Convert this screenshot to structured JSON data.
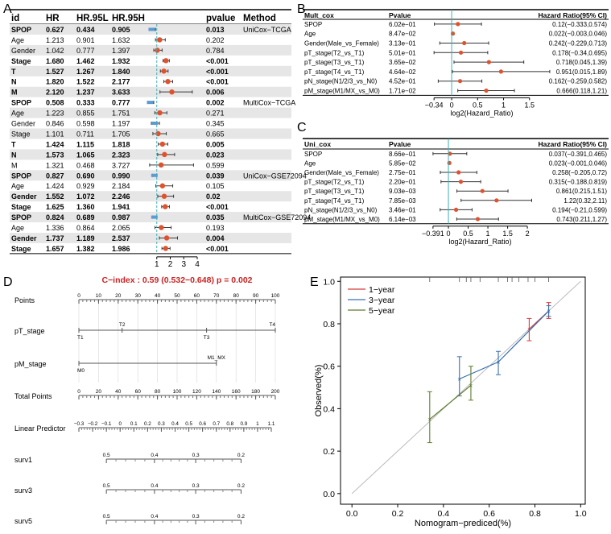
{
  "chart_data": [
    {
      "panel": "A",
      "type": "forest",
      "columns": [
        "id",
        "HR",
        "HR.95L",
        "HR.95H",
        "pvalue",
        "Method"
      ],
      "x_ticks": [
        1,
        2,
        3,
        4
      ],
      "xlim": [
        0,
        4.6
      ],
      "reference_line": 1,
      "rows": [
        {
          "id": "SPOP",
          "hr": "0.627",
          "lo": "0.434",
          "hi": "0.905",
          "p": "0.013",
          "method": "UniCox−TCGA",
          "bold": true,
          "shade": true
        },
        {
          "id": "Age",
          "hr": "1.213",
          "lo": "0.901",
          "hi": "1.632",
          "p": "0.202",
          "method": "",
          "bold": false,
          "shade": false
        },
        {
          "id": "Gender",
          "hr": "1.042",
          "lo": "0.777",
          "hi": "1.397",
          "p": "0.784",
          "method": "",
          "bold": false,
          "shade": true
        },
        {
          "id": "Stage",
          "hr": "1.680",
          "lo": "1.462",
          "hi": "1.932",
          "p": "<0.001",
          "method": "",
          "bold": true,
          "shade": false
        },
        {
          "id": "T",
          "hr": "1.527",
          "lo": "1.267",
          "hi": "1.840",
          "p": "<0.001",
          "method": "",
          "bold": true,
          "shade": true
        },
        {
          "id": "N",
          "hr": "1.820",
          "lo": "1.522",
          "hi": "2.177",
          "p": "<0.001",
          "method": "",
          "bold": true,
          "shade": false
        },
        {
          "id": "M",
          "hr": "2.120",
          "lo": "1.237",
          "hi": "3.633",
          "p": "0.006",
          "method": "",
          "bold": true,
          "shade": true
        },
        {
          "id": "SPOP",
          "hr": "0.508",
          "lo": "0.333",
          "hi": "0.777",
          "p": "0.002",
          "method": "MultiCox−TCGA",
          "bold": true,
          "shade": false
        },
        {
          "id": "Age",
          "hr": "1.223",
          "lo": "0.855",
          "hi": "1.751",
          "p": "0.271",
          "method": "",
          "bold": false,
          "shade": true
        },
        {
          "id": "Gender",
          "hr": "0.846",
          "lo": "0.598",
          "hi": "1.197",
          "p": "0.345",
          "method": "",
          "bold": false,
          "shade": false
        },
        {
          "id": "Stage",
          "hr": "1.101",
          "lo": "0.711",
          "hi": "1.705",
          "p": "0.665",
          "method": "",
          "bold": false,
          "shade": true
        },
        {
          "id": "T",
          "hr": "1.424",
          "lo": "1.115",
          "hi": "1.818",
          "p": "0.005",
          "method": "",
          "bold": true,
          "shade": false
        },
        {
          "id": "N",
          "hr": "1.573",
          "lo": "1.065",
          "hi": "2.323",
          "p": "0.023",
          "method": "",
          "bold": true,
          "shade": true
        },
        {
          "id": "M",
          "hr": "1.321",
          "lo": "0.468",
          "hi": "3.727",
          "p": "0.599",
          "method": "",
          "bold": false,
          "shade": false
        },
        {
          "id": "SPOP",
          "hr": "0.827",
          "lo": "0.690",
          "hi": "0.990",
          "p": "0.039",
          "method": "UniCox−GSE72094",
          "bold": true,
          "shade": true
        },
        {
          "id": "Age",
          "hr": "1.424",
          "lo": "0.929",
          "hi": "2.184",
          "p": "0.105",
          "method": "",
          "bold": false,
          "shade": false
        },
        {
          "id": "Gender",
          "hr": "1.552",
          "lo": "1.072",
          "hi": "2.246",
          "p": "0.02",
          "method": "",
          "bold": true,
          "shade": true
        },
        {
          "id": "Stage",
          "hr": "1.625",
          "lo": "1.360",
          "hi": "1.941",
          "p": "<0.001",
          "method": "",
          "bold": true,
          "shade": false
        },
        {
          "id": "SPOP",
          "hr": "0.824",
          "lo": "0.689",
          "hi": "0.987",
          "p": "0.035",
          "method": "MultiCox−GSE72094",
          "bold": true,
          "shade": true
        },
        {
          "id": "Age",
          "hr": "1.336",
          "lo": "0.864",
          "hi": "2.065",
          "p": "0.193",
          "method": "",
          "bold": false,
          "shade": false
        },
        {
          "id": "Gender",
          "hr": "1.737",
          "lo": "1.189",
          "hi": "2.537",
          "p": "0.004",
          "method": "",
          "bold": true,
          "shade": true
        },
        {
          "id": "Stage",
          "hr": "1.657",
          "lo": "1.382",
          "hi": "1.986",
          "p": "<0.001",
          "method": "",
          "bold": true,
          "shade": false
        }
      ]
    },
    {
      "panel": "B",
      "type": "forest",
      "title": "Mult_cox",
      "pcol": "Pvalue",
      "hrcol": "Hazard Ratio(95% CI)",
      "xlabel": "log2(Hazard_Ratio)",
      "x_ticks": [
        "−0.34",
        "0",
        "0.5",
        "1",
        "1.5"
      ],
      "x_tick_values": [
        -0.34,
        0,
        0.5,
        1,
        1.5
      ],
      "xlim": [
        -0.42,
        1.55
      ],
      "reference_line": 0,
      "rows": [
        {
          "label": "SPOP",
          "p": "6.02e−01",
          "est": 0.12,
          "lo": -0.333,
          "hi": 0.574,
          "text": "0.12(−0.333,0.574)"
        },
        {
          "label": "Age",
          "p": "8.47e−02",
          "est": 0.022,
          "lo": -0.003,
          "hi": 0.046,
          "text": "0.022(−0.003,0.046)"
        },
        {
          "label": "Gender(Male_vs_Female)",
          "p": "3.13e−01",
          "est": 0.242,
          "lo": -0.229,
          "hi": 0.713,
          "text": "0.242(−0.229,0.713)"
        },
        {
          "label": "pT_stage(T2_vs_T1)",
          "p": "5.01e−01",
          "est": 0.178,
          "lo": -0.34,
          "hi": 0.695,
          "text": "0.178(−0.34,0.695)"
        },
        {
          "label": "pT_stage(T3_vs_T1)",
          "p": "3.65e−02",
          "est": 0.718,
          "lo": 0.045,
          "hi": 1.39,
          "text": "0.718(0.045,1.39)"
        },
        {
          "label": "pT_stage(T4_vs_T1)",
          "p": "4.64e−02",
          "est": 0.951,
          "lo": 0.015,
          "hi": 1.89,
          "text": "0.951(0.015,1.89)"
        },
        {
          "label": "pN_stage(N1/2/3_vs_N0)",
          "p": "4.52e−01",
          "est": 0.162,
          "lo": -0.259,
          "hi": 0.582,
          "text": "0.162(−0.259,0.582)"
        },
        {
          "label": "pM_stage(M1/MX_vs_M0)",
          "p": "1.71e−02",
          "est": 0.666,
          "lo": 0.118,
          "hi": 1.21,
          "text": "0.666(0.118,1.21)"
        }
      ]
    },
    {
      "panel": "C",
      "type": "forest",
      "title": "Uni_cox",
      "pcol": "Pvalue",
      "hrcol": "Hazard Ratio(95% CI)",
      "xlabel": "log2(Hazard_Ratio)",
      "x_ticks": [
        "−0.391",
        "0",
        "0.5",
        "1",
        "1.5",
        "2"
      ],
      "x_tick_values": [
        -0.391,
        0,
        0.5,
        1,
        1.5,
        2
      ],
      "xlim": [
        -0.47,
        2.1
      ],
      "reference_line": 0,
      "rows": [
        {
          "label": "SPOP",
          "p": "8.66e−01",
          "est": 0.037,
          "lo": -0.391,
          "hi": 0.465,
          "text": "0.037(−0.391,0.465)"
        },
        {
          "label": "Age",
          "p": "5.85e−02",
          "est": 0.023,
          "lo": -0.001,
          "hi": 0.046,
          "text": "0.023(−0.001,0.046)"
        },
        {
          "label": "Gender(Male_vs_Female)",
          "p": "2.75e−01",
          "est": 0.258,
          "lo": -0.205,
          "hi": 0.72,
          "text": "0.258(−0.205,0.72)"
        },
        {
          "label": "pT_stage(T2_vs_T1)",
          "p": "2.20e−01",
          "est": 0.315,
          "lo": -0.188,
          "hi": 0.819,
          "text": "0.315(−0.188,0.819)"
        },
        {
          "label": "pT_stage(T3_vs_T1)",
          "p": "9.03e−03",
          "est": 0.861,
          "lo": 0.215,
          "hi": 1.51,
          "text": "0.861(0.215,1.51)"
        },
        {
          "label": "pT_stage(T4_vs_T1)",
          "p": "7.85e−03",
          "est": 1.22,
          "lo": 0.32,
          "hi": 2.11,
          "text": "1.22(0.32,2.11)"
        },
        {
          "label": "pN_stage(N1/2/3_vs_N0)",
          "p": "3.46e−01",
          "est": 0.194,
          "lo": -0.21,
          "hi": 0.599,
          "text": "0.194(−0.21,0.599)"
        },
        {
          "label": "pM_stage(M1/MX_vs_M0)",
          "p": "6.14e−03",
          "est": 0.743,
          "lo": 0.211,
          "hi": 1.27,
          "text": "0.743(0.211,1.27)"
        }
      ]
    },
    {
      "panel": "D",
      "type": "nomogram",
      "title": "C−index : 0.59 (0.532−0.648) p = 0.002",
      "scale_domain": [
        -0.3,
        1.15
      ],
      "rows": [
        {
          "label": "Points",
          "kind": "axis",
          "min": 0,
          "max": 100,
          "labels": [
            0,
            10,
            20,
            30,
            40,
            50,
            60,
            70,
            80,
            90,
            100
          ],
          "minor": 5
        },
        {
          "label": "pT_stage",
          "kind": "categories",
          "min": 0,
          "max": 100,
          "points": [
            {
              "v": 0,
              "t": "T1",
              "pos": "below"
            },
            {
              "v": 22,
              "t": "T2",
              "pos": "above"
            },
            {
              "v": 65,
              "t": "T3",
              "pos": "below"
            },
            {
              "v": 100,
              "t": "T4",
              "pos": "above"
            }
          ]
        },
        {
          "label": "pM_stage",
          "kind": "categories",
          "min": 0,
          "max": 70,
          "points": [
            {
              "v": 0,
              "t": "M0",
              "pos": "below"
            },
            {
              "v": 70,
              "t": "M1_MX",
              "pos": "above"
            }
          ]
        },
        {
          "label": "Total Points",
          "kind": "axis",
          "min": 0,
          "max": 200,
          "labels": [
            0,
            20,
            40,
            60,
            80,
            100,
            120,
            140,
            160,
            180,
            200
          ],
          "minor": 5
        },
        {
          "label": "Linear Predictor",
          "kind": "lp",
          "min": -0.3,
          "max": 1.1,
          "labels": [
            "−0.3",
            "−0.2",
            "−0.1",
            "0",
            "0.1",
            "0.2",
            "0.3",
            "0.4",
            "0.5",
            "0.6",
            "0.7",
            "0.8",
            "0.9",
            "1",
            "1.1"
          ],
          "values": [
            -0.3,
            -0.2,
            -0.1,
            0,
            0.1,
            0.2,
            0.3,
            0.4,
            0.5,
            0.6,
            0.7,
            0.8,
            0.9,
            1,
            1.1
          ]
        },
        {
          "label": "surv1",
          "kind": "surv",
          "ticks": [
            {
              "v": -0.1,
              "t": "0.5"
            },
            {
              "v": 0.25,
              "t": "0.4"
            },
            {
              "v": 0.55,
              "t": "0.3"
            },
            {
              "v": 0.88,
              "t": "0.2"
            }
          ]
        },
        {
          "label": "surv3",
          "kind": "surv",
          "ticks": [
            {
              "v": -0.1,
              "t": "0.5"
            },
            {
              "v": 0.25,
              "t": "0.4"
            },
            {
              "v": 0.55,
              "t": "0.3"
            },
            {
              "v": 0.88,
              "t": "0.2"
            }
          ]
        },
        {
          "label": "surv5",
          "kind": "surv",
          "ticks": [
            {
              "v": -0.1,
              "t": "0.5"
            },
            {
              "v": 0.25,
              "t": "0.4"
            },
            {
              "v": 0.55,
              "t": "0.3"
            },
            {
              "v": 0.88,
              "t": "0.2"
            }
          ]
        }
      ]
    },
    {
      "panel": "E",
      "type": "calibration",
      "xlabel": "Nomogram−prediced(%)",
      "ylabel": "Observed(%)",
      "xlim": [
        -0.05,
        1.02
      ],
      "ylim": [
        -0.05,
        1.02
      ],
      "x_ticks": [
        "0.0",
        "0.2",
        "0.4",
        "0.6",
        "0.8",
        "1.0"
      ],
      "y_ticks": [
        "0.0",
        "0.2",
        "0.4",
        "0.6",
        "0.8",
        "1.0"
      ],
      "tick_values": [
        0,
        0.2,
        0.4,
        0.6,
        0.8,
        1.0
      ],
      "rug": [
        0.34,
        0.47,
        0.5,
        0.52,
        0.56,
        0.64,
        0.68,
        0.7,
        0.73,
        0.77,
        0.8,
        0.86
      ],
      "series": [
        {
          "name": "1−year",
          "color": "#d43c3c",
          "points": [
            {
              "x": 0.775,
              "y": 0.775,
              "lo": 0.72,
              "hi": 0.825
            },
            {
              "x": 0.86,
              "y": 0.86,
              "lo": 0.825,
              "hi": 0.9
            }
          ]
        },
        {
          "name": "3−year",
          "color": "#3a6fb0",
          "points": [
            {
              "x": 0.47,
              "y": 0.54,
              "lo": 0.46,
              "hi": 0.645
            },
            {
              "x": 0.64,
              "y": 0.62,
              "lo": 0.56,
              "hi": 0.67
            },
            {
              "x": 0.86,
              "y": 0.86,
              "lo": 0.835,
              "hi": 0.885
            }
          ]
        },
        {
          "name": "5−year",
          "color": "#5e7d2e",
          "points": [
            {
              "x": 0.34,
              "y": 0.35,
              "lo": 0.24,
              "hi": 0.48
            },
            {
              "x": 0.52,
              "y": 0.51,
              "lo": 0.44,
              "hi": 0.6
            }
          ]
        }
      ]
    }
  ],
  "panels": {
    "A": "A",
    "B": "B",
    "C": "C",
    "D": "D",
    "E": "E"
  },
  "colors": {
    "point": "#e0522d",
    "errbar": "#3a3a3a",
    "ref": "#3fb0b8",
    "shade": "#e6e6e6",
    "ctitle": "#cc2222",
    "spop_box": "#5b9bd5"
  }
}
